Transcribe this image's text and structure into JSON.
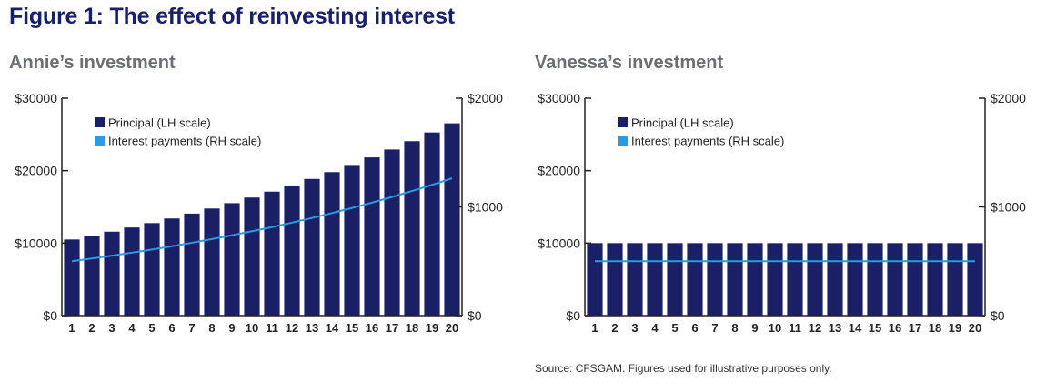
{
  "figure_title": "Figure 1: The effect of reinvesting interest",
  "source_note": "Source: CFSGAM. Figures used for illustrative purposes only.",
  "colors": {
    "bar": "#1b1f66",
    "line": "#2a9be0",
    "axis": "#222222",
    "title": "#1a1f6b"
  },
  "chart_data": [
    {
      "type": "bar",
      "title": "Annie’s investment",
      "categories": [
        "1",
        "2",
        "3",
        "4",
        "5",
        "6",
        "7",
        "8",
        "9",
        "10",
        "11",
        "12",
        "13",
        "14",
        "15",
        "16",
        "17",
        "18",
        "19",
        "20"
      ],
      "left_axis": {
        "ylim": [
          0,
          30000
        ],
        "ticks": [
          0,
          10000,
          20000,
          30000
        ],
        "tick_labels": [
          "$0",
          "$10000",
          "$20000",
          "$30000"
        ]
      },
      "right_axis": {
        "ylim": [
          0,
          2000
        ],
        "ticks": [
          0,
          1000,
          2000
        ],
        "tick_labels": [
          "$0",
          "$1000",
          "$2000"
        ]
      },
      "legend": [
        {
          "label": "Principal (LH scale)",
          "kind": "bar"
        },
        {
          "label": "Interest payments (RH scale)",
          "kind": "line"
        }
      ],
      "series": [
        {
          "name": "Principal (LH scale)",
          "type": "bar",
          "axis": "left",
          "values": [
            10500,
            11025,
            11576,
            12155,
            12763,
            13401,
            14071,
            14775,
            15513,
            16289,
            17103,
            17959,
            18856,
            19799,
            20789,
            21829,
            22920,
            24066,
            25270,
            26533
          ]
        },
        {
          "name": "Interest payments (RH scale)",
          "type": "line",
          "axis": "right",
          "values": [
            500,
            525,
            551,
            579,
            608,
            638,
            670,
            704,
            739,
            776,
            814,
            855,
            898,
            943,
            990,
            1039,
            1091,
            1146,
            1203,
            1263
          ]
        }
      ]
    },
    {
      "type": "bar",
      "title": "Vanessa’s investment",
      "categories": [
        "1",
        "2",
        "3",
        "4",
        "5",
        "6",
        "7",
        "8",
        "9",
        "10",
        "11",
        "12",
        "13",
        "14",
        "15",
        "16",
        "17",
        "18",
        "19",
        "20"
      ],
      "left_axis": {
        "ylim": [
          0,
          30000
        ],
        "ticks": [
          0,
          10000,
          20000,
          30000
        ],
        "tick_labels": [
          "$0",
          "$10000",
          "$20000",
          "$30000"
        ]
      },
      "right_axis": {
        "ylim": [
          0,
          2000
        ],
        "ticks": [
          0,
          1000,
          2000
        ],
        "tick_labels": [
          "$0",
          "$1000",
          "$2000"
        ]
      },
      "legend": [
        {
          "label": "Principal (LH scale)",
          "kind": "bar"
        },
        {
          "label": "Interest payments (RH scale)",
          "kind": "line"
        }
      ],
      "series": [
        {
          "name": "Principal (LH scale)",
          "type": "bar",
          "axis": "left",
          "values": [
            10000,
            10000,
            10000,
            10000,
            10000,
            10000,
            10000,
            10000,
            10000,
            10000,
            10000,
            10000,
            10000,
            10000,
            10000,
            10000,
            10000,
            10000,
            10000,
            10000
          ]
        },
        {
          "name": "Interest payments (RH scale)",
          "type": "line",
          "axis": "right",
          "values": [
            500,
            500,
            500,
            500,
            500,
            500,
            500,
            500,
            500,
            500,
            500,
            500,
            500,
            500,
            500,
            500,
            500,
            500,
            500,
            500
          ]
        }
      ]
    }
  ]
}
